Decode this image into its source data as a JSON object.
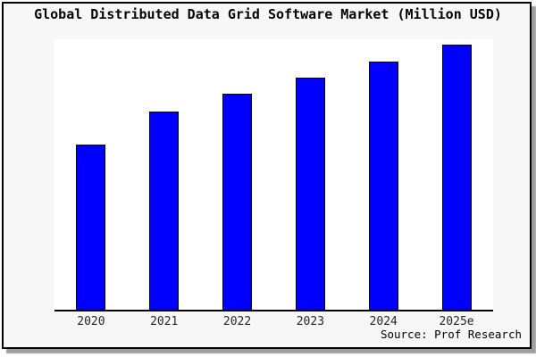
{
  "frame": {
    "background_color": "#f7f7f7",
    "plot_background_color": "#ffffff",
    "border_color": "#000000",
    "shadow_color": "#9e9e9e"
  },
  "chart_data": {
    "type": "bar",
    "title": "Global Distributed Data Grid Software Market (Million USD)",
    "categories": [
      "2020",
      "2021",
      "2022",
      "2023",
      "2024",
      "2025e"
    ],
    "values": [
      62.4,
      74.8,
      81.4,
      87.6,
      93.6,
      100
    ],
    "values_note": "relative units estimated from bar heights; no y-axis scale is rendered in the image",
    "ylim": [
      0,
      102
    ],
    "xlabel": "",
    "ylabel": "",
    "grid": false,
    "legend": "none",
    "y_axis_ticks": "none",
    "bar_color": "#0000ff",
    "bar_border_color": "#000000",
    "axis_line_color": "#000000",
    "source_note": "Source: Prof Research"
  }
}
